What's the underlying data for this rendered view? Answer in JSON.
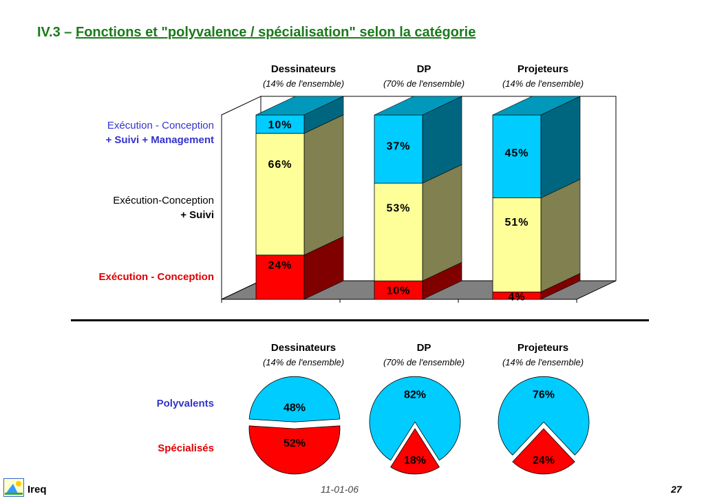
{
  "title": {
    "prefix": "IV.3 – ",
    "main": "Fonctions et \"polyvalence / spécialisation\" selon la catégorie"
  },
  "columns": [
    {
      "name": "Dessinateurs",
      "share": "(14% de l'ensemble)"
    },
    {
      "name": "DP",
      "share": "(70% de l'ensemble)"
    },
    {
      "name": "Projeteurs",
      "share": "(14% de l'ensemble)"
    }
  ],
  "bar_labels": {
    "top": {
      "line1": "Exécution - Conception",
      "line2": "+ Suivi + Management",
      "color": "#3333cc"
    },
    "middle": {
      "line1": "Exécution-Conception",
      "line2": "+ Suivi",
      "color": "#000000"
    },
    "bottom": {
      "line1": "Exécution - Conception",
      "color": "#dd0000"
    }
  },
  "pie_labels": {
    "polyvalents": {
      "text": "Polyvalents",
      "color": "#3333cc"
    },
    "specialises": {
      "text": "Spécialisés",
      "color": "#dd0000"
    }
  },
  "colors": {
    "top_front": "#00ccff",
    "top_side": "#006680",
    "top_cap": "#0099bb",
    "mid_front": "#ffff99",
    "mid_side": "#808050",
    "bot_front": "#ff0000",
    "bot_side": "#800000",
    "floor": "#808080",
    "pie_poly": "#00ccff",
    "pie_spec": "#ff0000"
  },
  "chart_data": [
    {
      "type": "bar",
      "stacked": true,
      "categories": [
        "Dessinateurs",
        "DP",
        "Projeteurs"
      ],
      "series": [
        {
          "name": "Exécution - Conception",
          "values": [
            24,
            10,
            4
          ],
          "labels": [
            "24%",
            "10%",
            "4%"
          ]
        },
        {
          "name": "Exécution-Conception + Suivi",
          "values": [
            66,
            53,
            51
          ],
          "labels": [
            "66%",
            "53%",
            "51%"
          ]
        },
        {
          "name": "Exécution - Conception + Suivi + Management",
          "values": [
            10,
            37,
            45
          ],
          "labels": [
            "10%",
            "37%",
            "45%"
          ]
        }
      ],
      "ylim": [
        0,
        100
      ]
    },
    {
      "type": "pie",
      "categories": [
        "Dessinateurs",
        "DP",
        "Projeteurs"
      ],
      "series": [
        {
          "name": "Polyvalents",
          "values": [
            48,
            82,
            76
          ],
          "labels": [
            "48%",
            "82%",
            "76%"
          ]
        },
        {
          "name": "Spécialisés",
          "values": [
            52,
            18,
            24
          ],
          "labels": [
            "52%",
            "18%",
            "24%"
          ]
        }
      ]
    }
  ],
  "footer": {
    "brand": "Ireq",
    "date": "11-01-06",
    "page": "27"
  }
}
